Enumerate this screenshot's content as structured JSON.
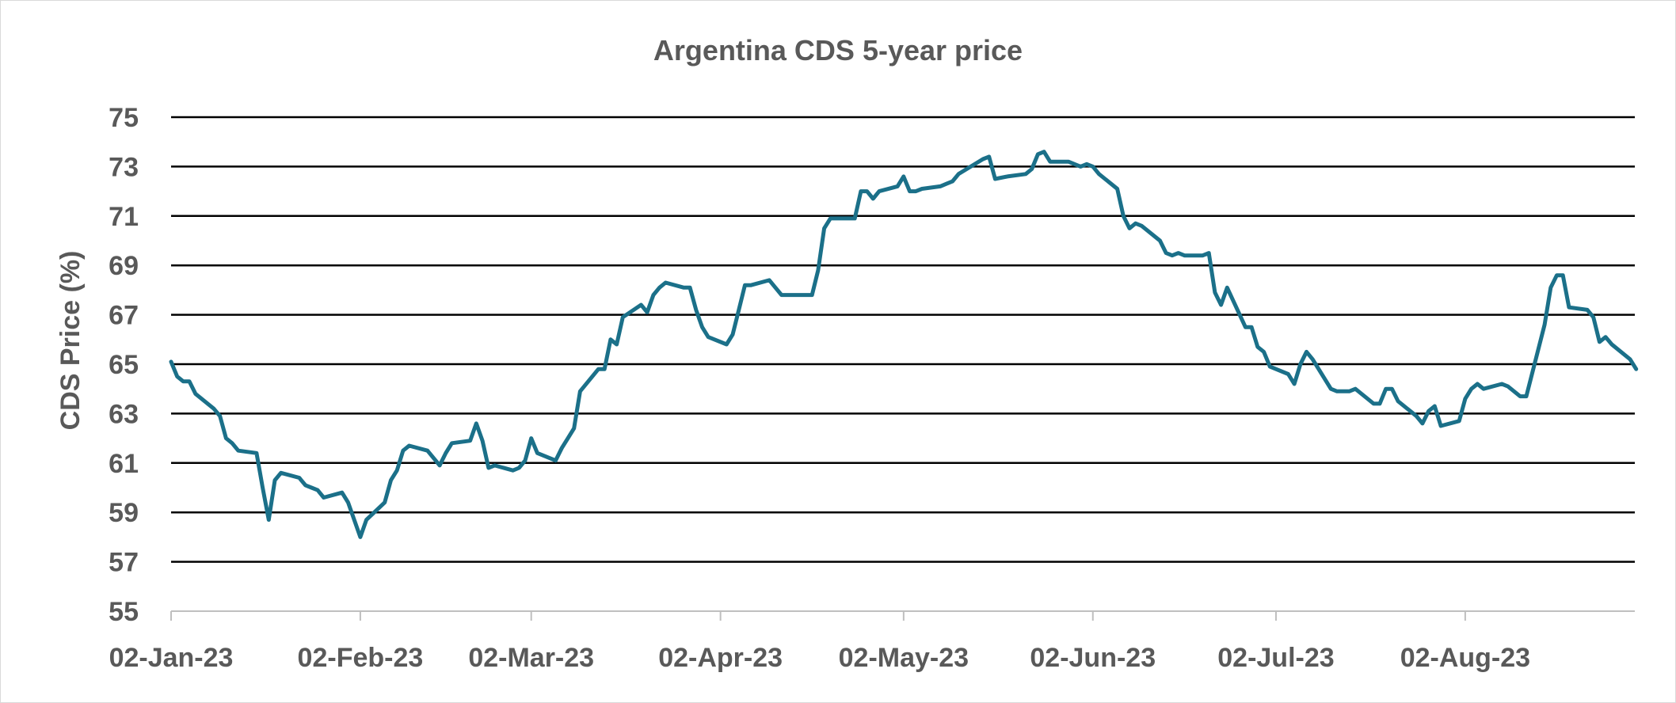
{
  "chart_data": {
    "type": "line",
    "title": "Argentina CDS 5-year price",
    "xlabel": "",
    "ylabel": "CDS Price (%)",
    "ylim": [
      55,
      75
    ],
    "y_ticks": [
      55,
      57,
      59,
      61,
      63,
      65,
      67,
      69,
      71,
      73,
      75
    ],
    "x_range": [
      0,
      237
    ],
    "x_ticks": [
      {
        "label": "02-Jan-23",
        "day": 0
      },
      {
        "label": "02-Feb-23",
        "day": 31
      },
      {
        "label": "02-Mar-23",
        "day": 59
      },
      {
        "label": "02-Apr-23",
        "day": 90
      },
      {
        "label": "02-May-23",
        "day": 120
      },
      {
        "label": "02-Jun-23",
        "day": 151
      },
      {
        "label": "02-Jul-23",
        "day": 181
      },
      {
        "label": "02-Aug-23",
        "day": 212
      }
    ],
    "grid": true,
    "legend": "none",
    "series": [
      {
        "name": "Argentina CDS 5-year price",
        "color": "#1b7089",
        "points": [
          [
            0,
            65.1
          ],
          [
            1,
            64.5
          ],
          [
            2,
            64.3
          ],
          [
            3,
            64.3
          ],
          [
            4,
            63.8
          ],
          [
            5,
            63.6
          ],
          [
            7,
            63.2
          ],
          [
            8,
            62.9
          ],
          [
            9,
            62.0
          ],
          [
            10,
            61.8
          ],
          [
            11,
            61.5
          ],
          [
            14,
            61.4
          ],
          [
            15,
            60.0
          ],
          [
            16,
            58.7
          ],
          [
            17,
            60.3
          ],
          [
            18,
            60.6
          ],
          [
            21,
            60.4
          ],
          [
            22,
            60.1
          ],
          [
            23,
            60.0
          ],
          [
            24,
            59.9
          ],
          [
            25,
            59.6
          ],
          [
            28,
            59.8
          ],
          [
            29,
            59.4
          ],
          [
            30,
            58.7
          ],
          [
            31,
            58.0
          ],
          [
            32,
            58.7
          ],
          [
            35,
            59.4
          ],
          [
            36,
            60.3
          ],
          [
            37,
            60.7
          ],
          [
            38,
            61.5
          ],
          [
            39,
            61.7
          ],
          [
            42,
            61.5
          ],
          [
            43,
            61.2
          ],
          [
            44,
            60.9
          ],
          [
            45,
            61.4
          ],
          [
            46,
            61.8
          ],
          [
            49,
            61.9
          ],
          [
            50,
            62.6
          ],
          [
            51,
            61.9
          ],
          [
            52,
            60.8
          ],
          [
            53,
            60.9
          ],
          [
            56,
            60.7
          ],
          [
            57,
            60.8
          ],
          [
            58,
            61.1
          ],
          [
            59,
            62.0
          ],
          [
            60,
            61.4
          ],
          [
            63,
            61.1
          ],
          [
            64,
            61.6
          ],
          [
            65,
            62.0
          ],
          [
            66,
            62.4
          ],
          [
            67,
            63.9
          ],
          [
            70,
            64.8
          ],
          [
            71,
            64.8
          ],
          [
            72,
            66.0
          ],
          [
            73,
            65.8
          ],
          [
            74,
            66.9
          ],
          [
            77,
            67.4
          ],
          [
            78,
            67.1
          ],
          [
            79,
            67.8
          ],
          [
            80,
            68.1
          ],
          [
            81,
            68.3
          ],
          [
            84,
            68.1
          ],
          [
            85,
            68.1
          ],
          [
            86,
            67.2
          ],
          [
            87,
            66.5
          ],
          [
            88,
            66.1
          ],
          [
            91,
            65.8
          ],
          [
            92,
            66.2
          ],
          [
            93,
            67.2
          ],
          [
            94,
            68.2
          ],
          [
            95,
            68.2
          ],
          [
            98,
            68.4
          ],
          [
            99,
            68.1
          ],
          [
            100,
            67.8
          ],
          [
            102,
            67.8
          ],
          [
            105,
            67.8
          ],
          [
            106,
            68.8
          ],
          [
            107,
            70.5
          ],
          [
            108,
            70.9
          ],
          [
            112,
            70.9
          ],
          [
            113,
            72.0
          ],
          [
            114,
            72.0
          ],
          [
            115,
            71.7
          ],
          [
            116,
            72.0
          ],
          [
            119,
            72.2
          ],
          [
            120,
            72.6
          ],
          [
            121,
            72.0
          ],
          [
            122,
            72.0
          ],
          [
            123,
            72.1
          ],
          [
            126,
            72.2
          ],
          [
            127,
            72.3
          ],
          [
            128,
            72.4
          ],
          [
            129,
            72.7
          ],
          [
            133,
            73.3
          ],
          [
            134,
            73.4
          ],
          [
            135,
            72.5
          ],
          [
            137,
            72.6
          ],
          [
            140,
            72.7
          ],
          [
            141,
            72.9
          ],
          [
            142,
            73.5
          ],
          [
            143,
            73.6
          ],
          [
            144,
            73.2
          ],
          [
            147,
            73.2
          ],
          [
            148,
            73.1
          ],
          [
            149,
            73.0
          ],
          [
            150,
            73.1
          ],
          [
            151,
            73.0
          ],
          [
            152,
            72.7
          ],
          [
            155,
            72.1
          ],
          [
            156,
            71.0
          ],
          [
            157,
            70.5
          ],
          [
            158,
            70.7
          ],
          [
            159,
            70.6
          ],
          [
            162,
            70.0
          ],
          [
            163,
            69.5
          ],
          [
            164,
            69.4
          ],
          [
            165,
            69.5
          ],
          [
            166,
            69.4
          ],
          [
            169,
            69.4
          ],
          [
            170,
            69.5
          ],
          [
            171,
            67.9
          ],
          [
            172,
            67.4
          ],
          [
            173,
            68.1
          ],
          [
            176,
            66.5
          ],
          [
            177,
            66.5
          ],
          [
            178,
            65.7
          ],
          [
            179,
            65.5
          ],
          [
            180,
            64.9
          ],
          [
            183,
            64.6
          ],
          [
            184,
            64.2
          ],
          [
            185,
            65.0
          ],
          [
            186,
            65.5
          ],
          [
            187,
            65.2
          ],
          [
            190,
            64.0
          ],
          [
            191,
            63.9
          ],
          [
            193,
            63.9
          ],
          [
            194,
            64.0
          ],
          [
            197,
            63.4
          ],
          [
            198,
            63.4
          ],
          [
            199,
            64.0
          ],
          [
            200,
            64.0
          ],
          [
            201,
            63.5
          ],
          [
            204,
            62.9
          ],
          [
            205,
            62.6
          ],
          [
            206,
            63.1
          ],
          [
            207,
            63.3
          ],
          [
            208,
            62.5
          ],
          [
            211,
            62.7
          ],
          [
            212,
            63.6
          ],
          [
            213,
            64.0
          ],
          [
            214,
            64.2
          ],
          [
            215,
            64.0
          ],
          [
            218,
            64.2
          ],
          [
            219,
            64.1
          ],
          [
            220,
            63.9
          ],
          [
            221,
            63.7
          ],
          [
            222,
            63.7
          ],
          [
            225,
            66.6
          ],
          [
            226,
            68.1
          ],
          [
            227,
            68.6
          ],
          [
            228,
            68.6
          ],
          [
            229,
            67.3
          ],
          [
            232,
            67.2
          ],
          [
            233,
            66.9
          ],
          [
            234,
            65.9
          ],
          [
            235,
            66.1
          ],
          [
            236,
            65.8
          ],
          [
            239,
            65.2
          ],
          [
            240,
            64.8
          ]
        ]
      }
    ]
  }
}
